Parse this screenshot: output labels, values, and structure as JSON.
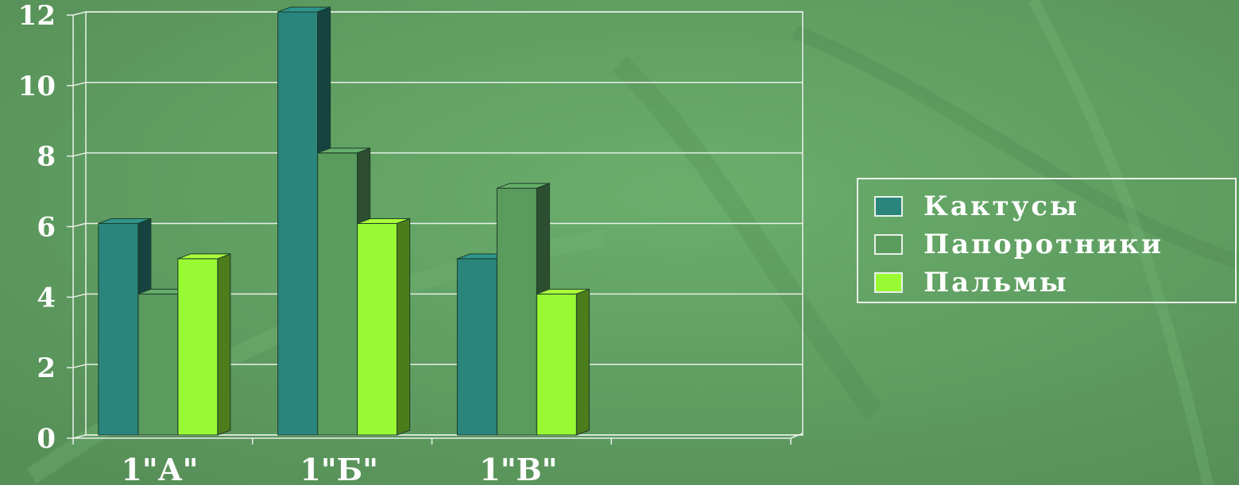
{
  "chart_data": {
    "type": "bar",
    "categories": [
      "1\"А\"",
      "1\"Б\"",
      "1\"В\"",
      ""
    ],
    "series": [
      {
        "name": "Кактусы",
        "values": [
          6,
          12,
          5,
          null
        ],
        "color": "#2a857d"
      },
      {
        "name": "Папоротники",
        "values": [
          4,
          8,
          7,
          null
        ],
        "color": "#5a9b5e"
      },
      {
        "name": "Пальмы",
        "values": [
          5,
          6,
          4,
          null
        ],
        "color": "#99fa33"
      }
    ],
    "title": "",
    "xlabel": "",
    "ylabel": "",
    "ylim": [
      0,
      12
    ],
    "yticks": [
      "0",
      "2",
      "4",
      "6",
      "8",
      "10",
      "12"
    ],
    "grid": true,
    "legend_position": "right",
    "style": "3d-clustered-column",
    "colors": {
      "background": "#5f9f62",
      "gridline": "#e8f0e8",
      "text": "#ffffff"
    }
  }
}
